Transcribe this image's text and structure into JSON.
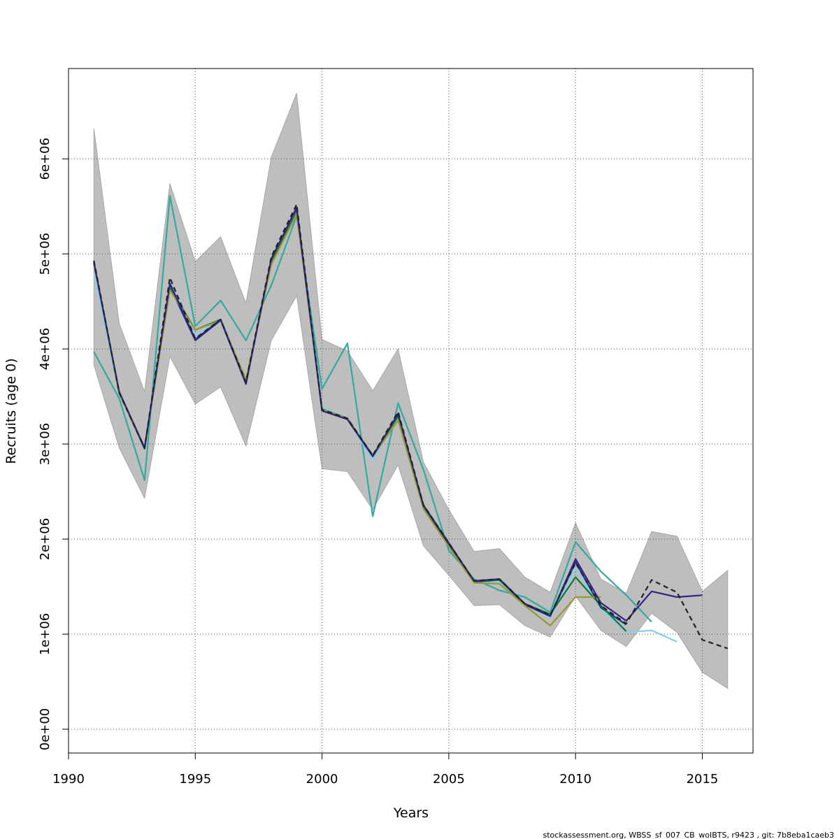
{
  "chart_data": {
    "type": "line",
    "title": "",
    "xlabel": "Years",
    "ylabel": "Recruits (age 0)",
    "xlim": [
      1990,
      2017
    ],
    "ylim": [
      -250000,
      6950000
    ],
    "xticks": [
      1990,
      1995,
      2000,
      2005,
      2010,
      2015
    ],
    "xtick_labels": [
      "1990",
      "1995",
      "2000",
      "2005",
      "2010",
      "2015"
    ],
    "yticks": [
      0,
      1000000,
      2000000,
      3000000,
      4000000,
      5000000,
      6000000
    ],
    "ytick_labels": [
      "0e+00",
      "1e+06",
      "2e+06",
      "3e+06",
      "4e+06",
      "5e+06",
      "6e+06"
    ],
    "grid": true,
    "band": {
      "color": "#bebebe",
      "x": [
        1991,
        1992,
        1993,
        1994,
        1995,
        1996,
        1997,
        1998,
        1999,
        2000,
        2001,
        2002,
        2003,
        2004,
        2005,
        2006,
        2007,
        2008,
        2009,
        2010,
        2011,
        2012,
        2013,
        2014,
        2015,
        2016
      ],
      "upper": [
        6320000,
        4270000,
        3550000,
        5740000,
        4920000,
        5180000,
        4480000,
        6020000,
        6690000,
        4100000,
        3980000,
        3560000,
        4000000,
        2810000,
        2310000,
        1870000,
        1900000,
        1600000,
        1440000,
        2170000,
        1580000,
        1430000,
        2080000,
        2030000,
        1450000,
        1670000
      ],
      "lower": [
        3830000,
        2960000,
        2430000,
        3920000,
        3420000,
        3600000,
        2980000,
        4090000,
        4560000,
        2740000,
        2710000,
        2310000,
        2780000,
        1930000,
        1620000,
        1300000,
        1310000,
        1090000,
        970000,
        1400000,
        1040000,
        870000,
        1220000,
        1020000,
        600000,
        430000
      ]
    },
    "series": [
      {
        "color": "#33a9a0",
        "dash": "",
        "x": [
          1991,
          1992,
          1993,
          1994,
          1995,
          1996,
          1997,
          1998,
          1999,
          2000,
          2001,
          2002,
          2003,
          2004,
          2005,
          2006,
          2007,
          2008,
          2009,
          2010,
          2011,
          2012,
          2013
        ],
        "values": [
          3970000,
          3480000,
          2620000,
          5610000,
          4240000,
          4510000,
          4090000,
          4670000,
          5400000,
          3580000,
          4060000,
          2240000,
          3430000,
          2730000,
          1880000,
          1580000,
          1460000,
          1390000,
          1230000,
          1970000,
          1660000,
          1410000,
          1130000
        ]
      },
      {
        "color": "#88ccee",
        "dash": "",
        "x": [
          1991,
          1992,
          1993,
          1994,
          1995,
          1996,
          1997,
          1998,
          1999,
          2000,
          2001,
          2002,
          2003,
          2004,
          2005,
          2006,
          2007,
          2008,
          2009,
          2010,
          2011,
          2012,
          2013,
          2014
        ],
        "values": [
          4800000,
          3520000,
          2960000,
          4700000,
          4140000,
          4320000,
          3660000,
          4920000,
          5460000,
          3390000,
          3270000,
          2830000,
          3280000,
          2330000,
          1940000,
          1550000,
          1550000,
          1310000,
          1180000,
          1690000,
          1270000,
          1020000,
          1040000,
          920000
        ]
      },
      {
        "color": "#1a3a8a",
        "dash": "",
        "x": [
          1991,
          1992,
          1993,
          1994,
          1995,
          1996,
          1997,
          1998,
          1999,
          2000,
          2001,
          2002,
          2003,
          2004,
          2005,
          2006,
          2007,
          2008,
          2009,
          2010,
          2011,
          2012
        ],
        "values": [
          4900000,
          3540000,
          2950000,
          4660000,
          4090000,
          4300000,
          3640000,
          4940000,
          5490000,
          3350000,
          3260000,
          2870000,
          3310000,
          2350000,
          1950000,
          1550000,
          1570000,
          1310000,
          1190000,
          1760000,
          1280000,
          1100000
        ]
      },
      {
        "color": "#117733",
        "dash": "",
        "x": [
          1991,
          1992,
          1993,
          1994,
          1995,
          1996,
          1997,
          1998,
          1999,
          2000,
          2001,
          2002,
          2003,
          2004,
          2005,
          2006,
          2007,
          2008,
          2009,
          2010,
          2011,
          2012
        ],
        "values": [
          4910000,
          3540000,
          2960000,
          4650000,
          4200000,
          4310000,
          3660000,
          4920000,
          5440000,
          3370000,
          3270000,
          2880000,
          3290000,
          2360000,
          1960000,
          1560000,
          1570000,
          1320000,
          1210000,
          1600000,
          1300000,
          1030000
        ]
      },
      {
        "color": "#999933",
        "dash": "",
        "x": [
          1991,
          1992,
          1993,
          1994,
          1995,
          1996,
          1997,
          1998,
          1999,
          2000,
          2001,
          2002,
          2003,
          2004,
          2005,
          2006,
          2007,
          2008,
          2009,
          2010,
          2011
        ],
        "values": [
          4900000,
          3530000,
          2960000,
          4620000,
          4200000,
          4300000,
          3680000,
          4890000,
          5420000,
          3370000,
          3270000,
          2870000,
          3250000,
          2320000,
          1920000,
          1540000,
          1530000,
          1300000,
          1090000,
          1390000,
          1390000
        ]
      },
      {
        "color": "#332288",
        "dash": "",
        "x": [
          1991,
          1992,
          1993,
          1994,
          1995,
          1996,
          1997,
          1998,
          1999,
          2000,
          2001,
          2002,
          2003,
          2004,
          2005,
          2006,
          2007,
          2008,
          2009,
          2010,
          2011,
          2012,
          2013,
          2014,
          2015
        ],
        "values": [
          4910000,
          3550000,
          2960000,
          4690000,
          4100000,
          4310000,
          3630000,
          4950000,
          5480000,
          3350000,
          3260000,
          2870000,
          3320000,
          2350000,
          1950000,
          1560000,
          1580000,
          1320000,
          1190000,
          1790000,
          1330000,
          1140000,
          1450000,
          1390000,
          1410000
        ]
      },
      {
        "color": "#222222",
        "dash": "7,5",
        "x": [
          1991,
          1992,
          1993,
          1994,
          1995,
          1996,
          1997,
          1998,
          1999,
          2000,
          2001,
          2002,
          2003,
          2004,
          2005,
          2006,
          2007,
          2008,
          2009,
          2010,
          2011,
          2012,
          2013,
          2014,
          2015,
          2016
        ],
        "values": [
          4930000,
          3540000,
          2960000,
          4750000,
          4110000,
          4310000,
          3650000,
          4970000,
          5520000,
          3360000,
          3270000,
          2880000,
          3340000,
          2360000,
          1960000,
          1560000,
          1580000,
          1320000,
          1200000,
          1750000,
          1300000,
          1110000,
          1570000,
          1440000,
          940000,
          850000
        ]
      }
    ]
  },
  "footer": {
    "text": "stockassessment.org, WBSS_sf_007_CB_woIBTS, r9423 , git: 7b8eba1caeb3"
  }
}
